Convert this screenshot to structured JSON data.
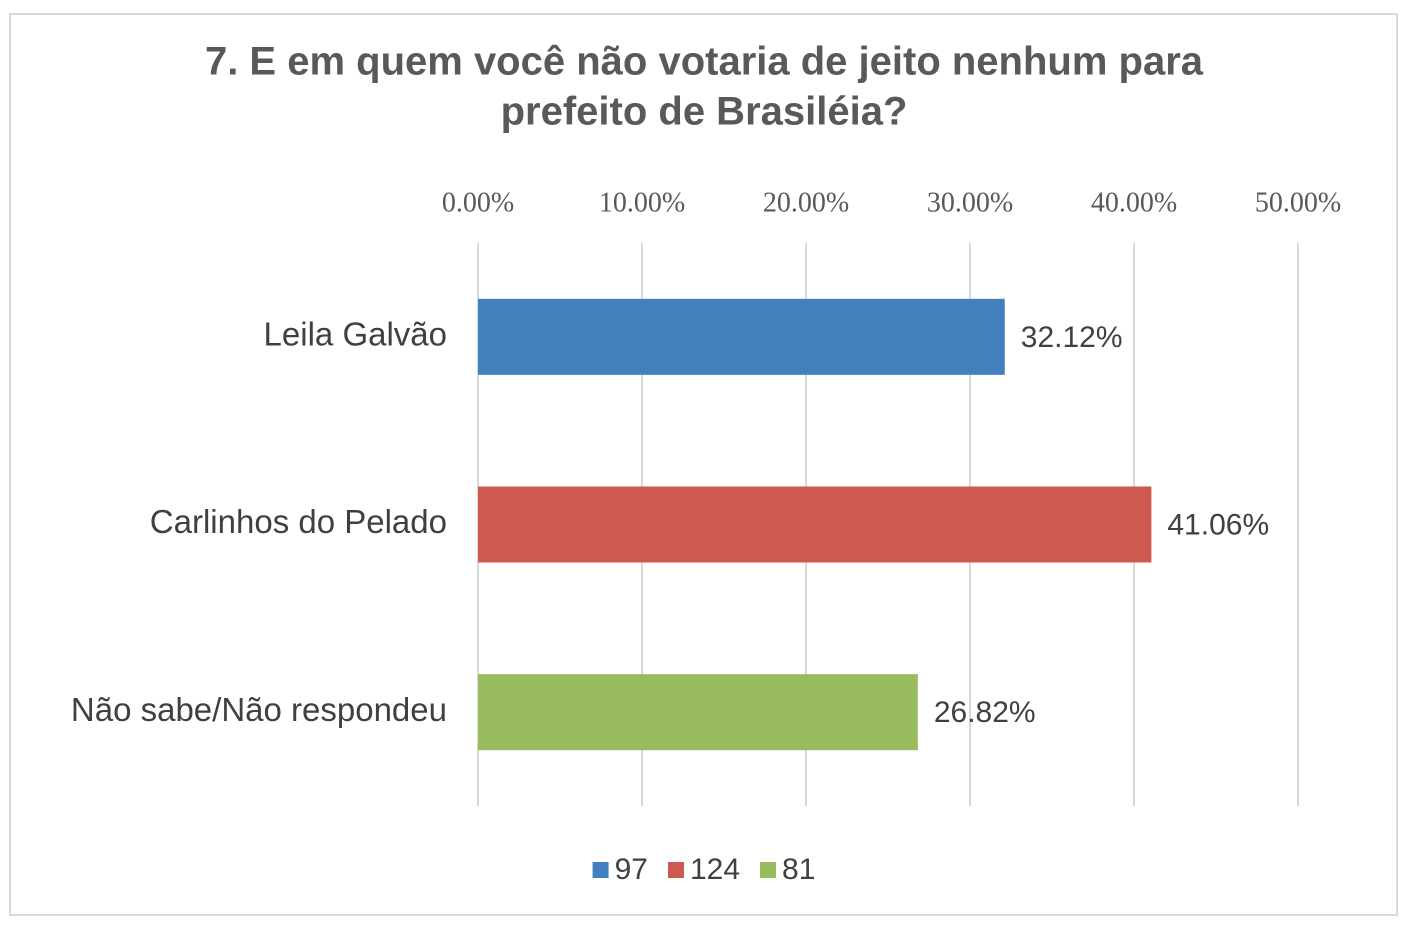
{
  "chart_data": {
    "type": "hbar",
    "title": [
      "7. E em quem você não votaria de jeito nenhum para",
      "prefeito de Brasiléia?"
    ],
    "categories": [
      "Leila Galvão",
      "Carlinhos do Pelado",
      "Não sabe/Não respondeu"
    ],
    "series": [
      {
        "name": "97",
        "color": "#4180bd",
        "values": [
          32.12,
          null,
          null
        ],
        "value_labels": [
          "32.12%",
          null,
          null
        ]
      },
      {
        "name": "124",
        "color": "#cd5951",
        "values": [
          null,
          41.06,
          null
        ],
        "value_labels": [
          null,
          "41.06%",
          null
        ]
      },
      {
        "name": "81",
        "color": "#98bb5e",
        "values": [
          null,
          null,
          26.82
        ],
        "value_labels": [
          null,
          null,
          "26.82%"
        ]
      }
    ],
    "xlim": [
      0,
      50
    ],
    "xticks": [
      {
        "value": 0,
        "label": "0.00%"
      },
      {
        "value": 10,
        "label": "10.00%"
      },
      {
        "value": 20,
        "label": "20.00%"
      },
      {
        "value": 30,
        "label": "30.00%"
      },
      {
        "value": 40,
        "label": "40.00%"
      },
      {
        "value": 50,
        "label": "50.00%"
      }
    ],
    "grid": true,
    "legend": "bottom"
  }
}
